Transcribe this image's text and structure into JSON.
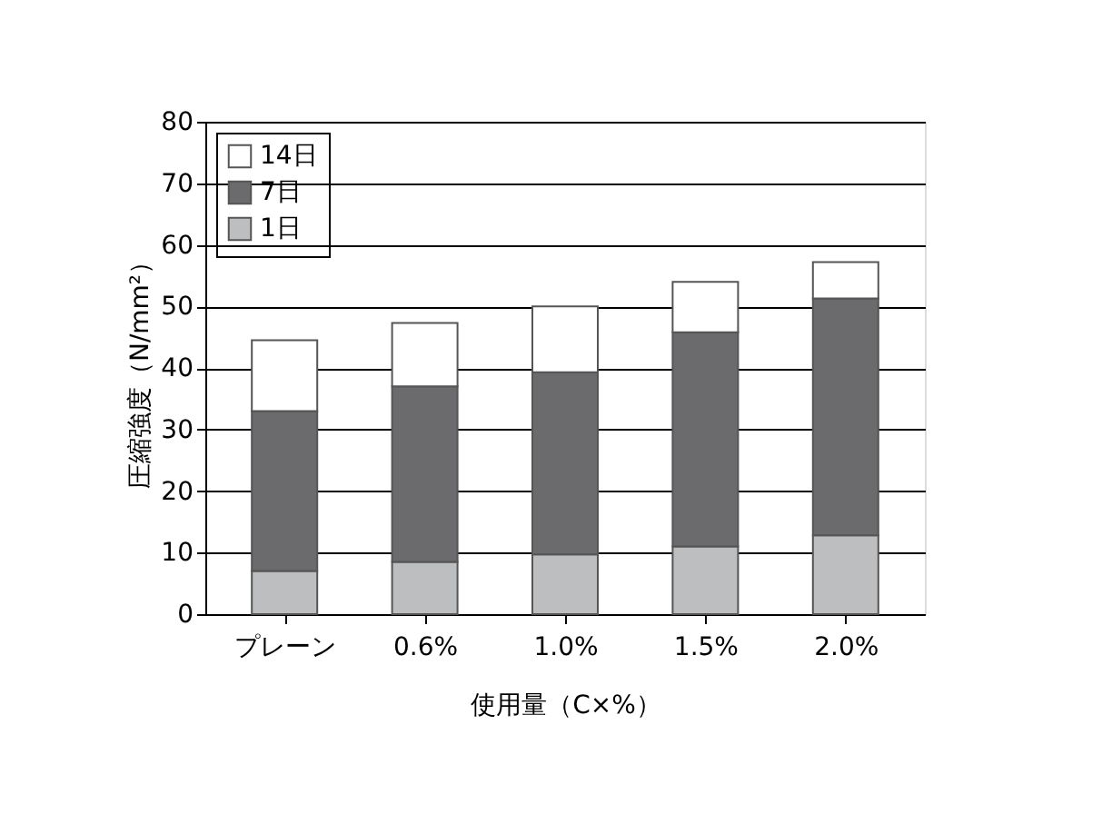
{
  "chart_data": {
    "type": "bar",
    "stacked": true,
    "xlabel": "使用量（C×%）",
    "ylabel": "圧縮強度（N/mm²）",
    "categories": [
      "プレーン",
      "0.6%",
      "1.0%",
      "1.5%",
      "2.0%"
    ],
    "series": [
      {
        "name": "1日",
        "color": "#bdbebf",
        "values": [
          7,
          8.5,
          9.7,
          11,
          12.8
        ]
      },
      {
        "name": "7日",
        "color": "#6b6b6d",
        "values": [
          26,
          28.5,
          29.6,
          34.8,
          38.5
        ]
      },
      {
        "name": "14日",
        "color": "#ffffff",
        "values": [
          11.5,
          10.3,
          10.7,
          8.2,
          5.9
        ]
      }
    ],
    "ylim": [
      0,
      80
    ],
    "yticks": [
      0,
      10,
      20,
      30,
      40,
      50,
      60,
      70,
      80
    ],
    "grid": "y",
    "legend": "top left"
  }
}
